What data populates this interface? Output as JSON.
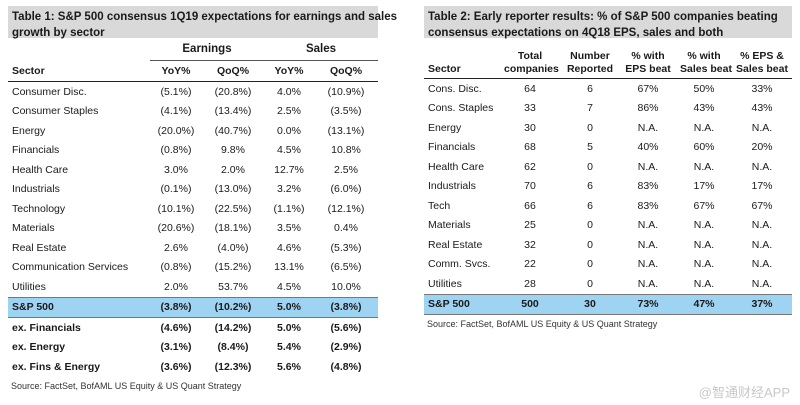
{
  "table1": {
    "title_line1": "Table 1: S&P 500 consensus 1Q19 expectations for earnings and sales",
    "title_line2": "growth by sector",
    "group_earnings": "Earnings",
    "group_sales": "Sales",
    "columns": [
      "Sector",
      "YoY%",
      "QoQ%",
      "YoY%",
      "QoQ%"
    ],
    "rows": [
      [
        "Consumer Disc.",
        "(5.1%)",
        "(20.8%)",
        "4.0%",
        "(10.9%)"
      ],
      [
        "Consumer Staples",
        "(4.1%)",
        "(13.4%)",
        "2.5%",
        "(3.5%)"
      ],
      [
        "Energy",
        "(20.0%)",
        "(40.7%)",
        "0.0%",
        "(13.1%)"
      ],
      [
        "Financials",
        "(0.8%)",
        "9.8%",
        "4.5%",
        "10.8%"
      ],
      [
        "Health Care",
        "3.0%",
        "2.0%",
        "12.7%",
        "2.5%"
      ],
      [
        "Industrials",
        "(0.1%)",
        "(13.0%)",
        "3.2%",
        "(6.0%)"
      ],
      [
        "Technology",
        "(10.1%)",
        "(22.5%)",
        "(1.1%)",
        "(12.1%)"
      ],
      [
        "Materials",
        "(20.6%)",
        "(18.1%)",
        "3.5%",
        "0.4%"
      ],
      [
        "Real Estate",
        "2.6%",
        "(4.0%)",
        "4.6%",
        "(5.3%)"
      ],
      [
        "Communication Services",
        "(0.8%)",
        "(15.2%)",
        "13.1%",
        "(6.5%)"
      ],
      [
        "Utilities",
        "2.0%",
        "53.7%",
        "4.5%",
        "10.0%"
      ]
    ],
    "highlight_row": [
      "S&P 500",
      "(3.8%)",
      "(10.2%)",
      "5.0%",
      "(3.8%)"
    ],
    "bold_rows": [
      [
        "ex. Financials",
        "(4.6%)",
        "(14.2%)",
        "5.0%",
        "(5.6%)"
      ],
      [
        "ex. Energy",
        "(3.1%)",
        "(8.4%)",
        "5.4%",
        "(2.9%)"
      ],
      [
        "ex. Fins & Energy",
        "(3.6%)",
        "(12.3%)",
        "5.6%",
        "(4.8%)"
      ]
    ],
    "source": "Source: FactSet, BofAML US Equity & US Quant Strategy"
  },
  "table2": {
    "title_line1": "Table 2: Early reporter results: % of S&P 500 companies beating",
    "title_line2": "consensus expectations on 4Q18 EPS, sales and both",
    "columns": [
      [
        "Sector"
      ],
      [
        "Total",
        "companies"
      ],
      [
        "Number",
        "Reported"
      ],
      [
        "% with",
        "EPS beat"
      ],
      [
        "% with",
        "Sales beat"
      ],
      [
        "% EPS &",
        "Sales beat"
      ]
    ],
    "rows": [
      [
        "Cons. Disc.",
        "64",
        "6",
        "67%",
        "50%",
        "33%"
      ],
      [
        "Cons. Staples",
        "33",
        "7",
        "86%",
        "43%",
        "43%"
      ],
      [
        "Energy",
        "30",
        "0",
        "N.A.",
        "N.A.",
        "N.A."
      ],
      [
        "Financials",
        "68",
        "5",
        "40%",
        "60%",
        "20%"
      ],
      [
        "Health Care",
        "62",
        "0",
        "N.A.",
        "N.A.",
        "N.A."
      ],
      [
        "Industrials",
        "70",
        "6",
        "83%",
        "17%",
        "17%"
      ],
      [
        "Tech",
        "66",
        "6",
        "83%",
        "67%",
        "67%"
      ],
      [
        "Materials",
        "25",
        "0",
        "N.A.",
        "N.A.",
        "N.A."
      ],
      [
        "Real Estate",
        "32",
        "0",
        "N.A.",
        "N.A.",
        "N.A."
      ],
      [
        "Comm. Svcs.",
        "22",
        "0",
        "N.A.",
        "N.A.",
        "N.A."
      ],
      [
        "Utilities",
        "28",
        "0",
        "N.A.",
        "N.A.",
        "N.A."
      ]
    ],
    "highlight_row": [
      "S&P 500",
      "500",
      "30",
      "73%",
      "47%",
      "37%"
    ],
    "source": "Source: FactSet, BofAML US Equity & US Quant Strategy"
  },
  "watermark": "@智通财经APP"
}
